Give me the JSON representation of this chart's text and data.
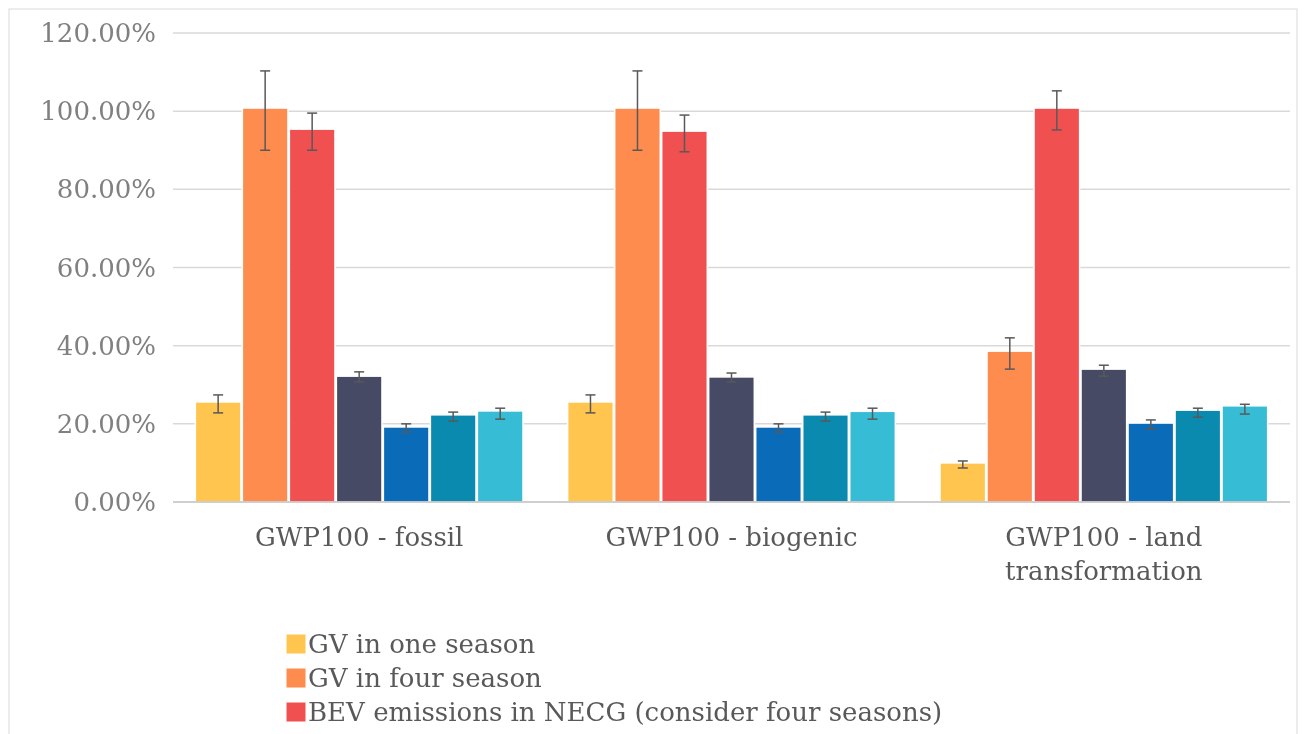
{
  "chart_data": {
    "type": "bar",
    "categories": [
      "GWP100 - fossil",
      "GWP100 - biogenic",
      "GWP100 - land transformation"
    ],
    "series": [
      {
        "name": "GV in one season",
        "color": "#ffc54f",
        "values": [
          25.6,
          25.6,
          10
        ],
        "errors": [
          [
            22.8,
            27.4
          ],
          [
            22.8,
            27.4
          ],
          [
            8.7,
            10.5
          ]
        ]
      },
      {
        "name": "GV in four season",
        "color": "#ff8c4f",
        "values": [
          100.8,
          100.8,
          38.6
        ],
        "errors": [
          [
            90,
            110.3
          ],
          [
            90,
            110.3
          ],
          [
            34,
            42
          ]
        ]
      },
      {
        "name": "BEV emissions in NECG (consider four seasons)",
        "color": "#f0504f",
        "values": [
          95.4,
          94.9,
          100.8
        ],
        "errors": [
          [
            90,
            99.5
          ],
          [
            89.6,
            99
          ],
          [
            95.2,
            105.2
          ]
        ]
      },
      {
        "color": "#464a64",
        "values": [
          32.2,
          32,
          34
        ],
        "errors": [
          [
            30.7,
            33.3
          ],
          [
            30.7,
            33
          ],
          [
            32.2,
            35
          ]
        ]
      },
      {
        "color": "#0a6cb8",
        "values": [
          19.2,
          19.2,
          20.2
        ],
        "errors": [
          [
            17.9,
            20
          ],
          [
            17.9,
            20
          ],
          [
            18.7,
            21
          ]
        ]
      },
      {
        "color": "#0a8aae",
        "values": [
          22.3,
          22.3,
          23.5
        ],
        "errors": [
          [
            20.7,
            23
          ],
          [
            20.7,
            23
          ],
          [
            21.7,
            24
          ]
        ]
      },
      {
        "color": "#36bcd4",
        "values": [
          23.3,
          23.2,
          24.6
        ],
        "errors": [
          [
            21.2,
            24
          ],
          [
            21.2,
            24
          ],
          [
            22.5,
            25
          ]
        ]
      }
    ],
    "ylim": [
      0,
      120
    ],
    "yticks": [
      {
        "value": 0,
        "label": "0.00%"
      },
      {
        "value": 20,
        "label": "20.00%"
      },
      {
        "value": 40,
        "label": "40.00%"
      },
      {
        "value": 60,
        "label": "60.00%"
      },
      {
        "value": 80,
        "label": "80.00%"
      },
      {
        "value": 100,
        "label": "100.00%"
      },
      {
        "value": 120,
        "label": "120.00%"
      }
    ],
    "grid": "y",
    "legend": "bottom"
  }
}
